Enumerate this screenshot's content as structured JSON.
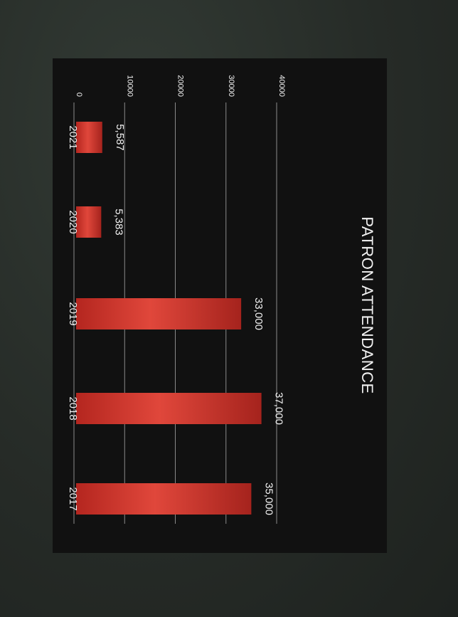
{
  "chart_data": {
    "type": "bar",
    "orientation": "vertical",
    "title": "PATRON ATTENDANCE",
    "categories": [
      "2017",
      "2018",
      "2019",
      "2020",
      "2021"
    ],
    "values": [
      35000,
      37000,
      33000,
      5383,
      5587
    ],
    "data_labels": [
      "35,000",
      "37,000",
      "33,000",
      "5,383",
      "5,587"
    ],
    "y_ticks": [
      0,
      10000,
      20000,
      30000,
      40000
    ],
    "y_tick_labels": [
      "0",
      "10000",
      "20000",
      "30000",
      "40000"
    ],
    "ylim": [
      0,
      40000
    ],
    "xlabel": "",
    "ylabel": "",
    "grid": true,
    "legend": "none",
    "rotation": "rotated 90 degrees clockwise",
    "colors": {
      "bar": "#d83a30",
      "bar_dark": "#a5231d",
      "panel_background": "#111111",
      "page_background": "#2a2f2b",
      "text": "#f2f2f2",
      "gridline": "#8a8a8a"
    }
  }
}
